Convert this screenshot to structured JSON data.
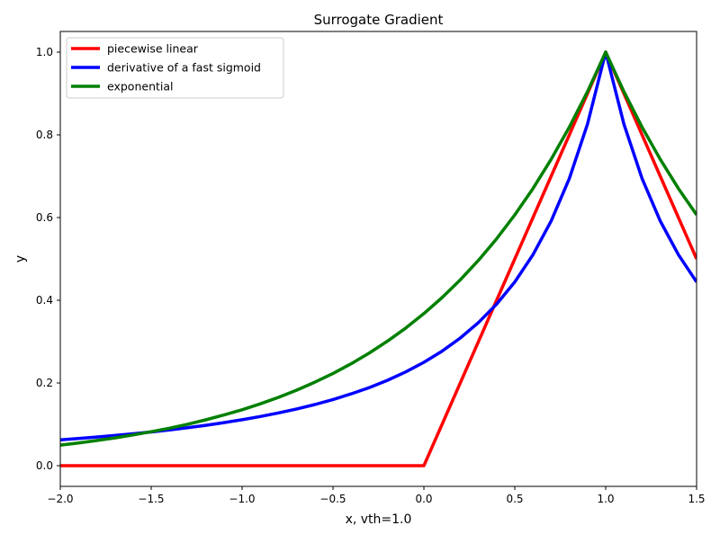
{
  "chart_data": {
    "type": "line",
    "title": "Surrogate Gradient",
    "xlabel": "x, vth=1.0",
    "ylabel": "y",
    "xlim": [
      -2.0,
      1.5
    ],
    "ylim": [
      -0.05,
      1.05
    ],
    "grid": false,
    "legend_position": "top-left",
    "x_ticks": [
      -2.0,
      -1.5,
      -1.0,
      -0.5,
      0.0,
      0.5,
      1.0,
      1.5
    ],
    "x_tick_labels": [
      "−2.0",
      "−1.5",
      "−1.0",
      "−0.5",
      "0.0",
      "0.5",
      "1.0",
      "1.5"
    ],
    "y_ticks": [
      0.0,
      0.2,
      0.4,
      0.6,
      0.8,
      1.0
    ],
    "y_tick_labels": [
      "0.0",
      "0.2",
      "0.4",
      "0.6",
      "0.8",
      "1.0"
    ],
    "x": [
      -2.0,
      -1.9,
      -1.8,
      -1.7,
      -1.6,
      -1.5,
      -1.4,
      -1.3,
      -1.2,
      -1.1,
      -1.0,
      -0.9,
      -0.8,
      -0.7,
      -0.6,
      -0.5,
      -0.4,
      -0.3,
      -0.2,
      -0.1,
      0.0,
      0.1,
      0.2,
      0.3,
      0.4,
      0.5,
      0.6,
      0.7,
      0.8,
      0.9,
      1.0,
      1.1,
      1.2,
      1.3,
      1.4,
      1.5
    ],
    "series": [
      {
        "name": "piecewise linear",
        "color": "#ff0000",
        "values": [
          0,
          0,
          0,
          0,
          0,
          0,
          0,
          0,
          0,
          0,
          0,
          0,
          0,
          0,
          0,
          0,
          0,
          0,
          0,
          0,
          0,
          0.1,
          0.2,
          0.3,
          0.4,
          0.5,
          0.6,
          0.7,
          0.8,
          0.9,
          1.0,
          0.9,
          0.8,
          0.7,
          0.6,
          0.5
        ]
      },
      {
        "name": "derivative of a fast sigmoid",
        "color": "#0000ff",
        "values": [
          0.0625,
          0.0657,
          0.0693,
          0.073,
          0.0772,
          0.0816,
          0.0865,
          0.0918,
          0.0977,
          0.1041,
          0.1111,
          0.1189,
          0.1276,
          0.1372,
          0.1479,
          0.16,
          0.1736,
          0.189,
          0.2066,
          0.2268,
          0.25,
          0.277,
          0.3086,
          0.346,
          0.3906,
          0.4444,
          0.5102,
          0.5917,
          0.6944,
          0.8264,
          1.0,
          0.8264,
          0.6944,
          0.5917,
          0.5102,
          0.4444
        ]
      },
      {
        "name": "exponential",
        "color": "#008000",
        "values": [
          0.0498,
          0.055,
          0.0608,
          0.0672,
          0.0743,
          0.0821,
          0.0907,
          0.1003,
          0.1108,
          0.1225,
          0.1353,
          0.1496,
          0.1653,
          0.1827,
          0.2019,
          0.2231,
          0.2466,
          0.2725,
          0.3012,
          0.3329,
          0.3679,
          0.4066,
          0.4493,
          0.4966,
          0.5488,
          0.6065,
          0.6703,
          0.7408,
          0.8187,
          0.9048,
          1.0,
          0.9048,
          0.8187,
          0.7408,
          0.6703,
          0.6065
        ]
      }
    ]
  }
}
